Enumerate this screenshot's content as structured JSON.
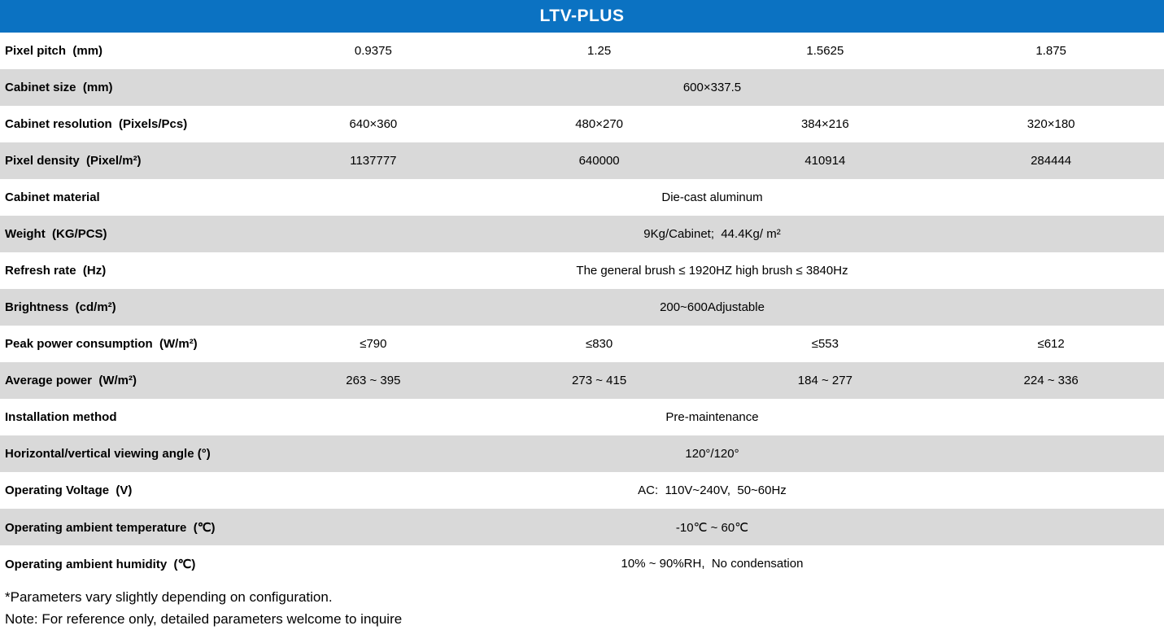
{
  "header": {
    "title": "LTV-PLUS"
  },
  "colors": {
    "header_bg": "#0b72c2",
    "header_text": "#ffffff",
    "row_alt_bg": "#d9d9d9",
    "body_text": "#000000"
  },
  "table": {
    "rows": [
      {
        "label": "Pixel pitch  (mm)",
        "values": [
          "0.9375",
          "1.25",
          "1.5625",
          "1.875"
        ]
      },
      {
        "label": "Cabinet size  (mm)",
        "merged": "600×337.5"
      },
      {
        "label": "Cabinet resolution  (Pixels/Pcs)",
        "values": [
          "640×360",
          "480×270",
          "384×216",
          "320×180"
        ]
      },
      {
        "label": "Pixel density  (Pixel/m²)",
        "values": [
          "1137777",
          "640000",
          "410914",
          "284444"
        ]
      },
      {
        "label": "Cabinet material",
        "merged": "Die-cast aluminum"
      },
      {
        "label": "Weight  (KG/PCS)",
        "merged": "9Kg/Cabinet;  44.4Kg/ m²"
      },
      {
        "label": "Refresh rate  (Hz)",
        "merged": "The general brush ≤ 1920HZ high brush ≤ 3840Hz"
      },
      {
        "label": "Brightness  (cd/m²)",
        "merged": "200~600Adjustable"
      },
      {
        "label": "Peak power consumption  (W/m²)",
        "values": [
          "≤790",
          "≤830",
          "≤553",
          "≤612"
        ]
      },
      {
        "label": "Average power  (W/m²)",
        "values": [
          "263 ~ 395",
          "273 ~ 415",
          "184 ~ 277",
          "224 ~ 336"
        ]
      },
      {
        "label": "Installation method",
        "merged": "Pre-maintenance"
      },
      {
        "label": "Horizontal/vertical viewing angle (°)",
        "merged": "120°/120°"
      },
      {
        "label": "Operating Voltage  (V)",
        "merged": "AC:  110V~240V,  50~60Hz"
      },
      {
        "label": "Operating ambient temperature  (℃)",
        "merged": "-10℃ ~ 60℃"
      },
      {
        "label": "Operating ambient humidity  (℃)",
        "merged": "10% ~ 90%RH,  No condensation"
      }
    ]
  },
  "footnotes": {
    "line1": "*Parameters vary slightly depending on configuration.",
    "line2": "Note: For reference only, detailed parameters welcome to inquire"
  }
}
